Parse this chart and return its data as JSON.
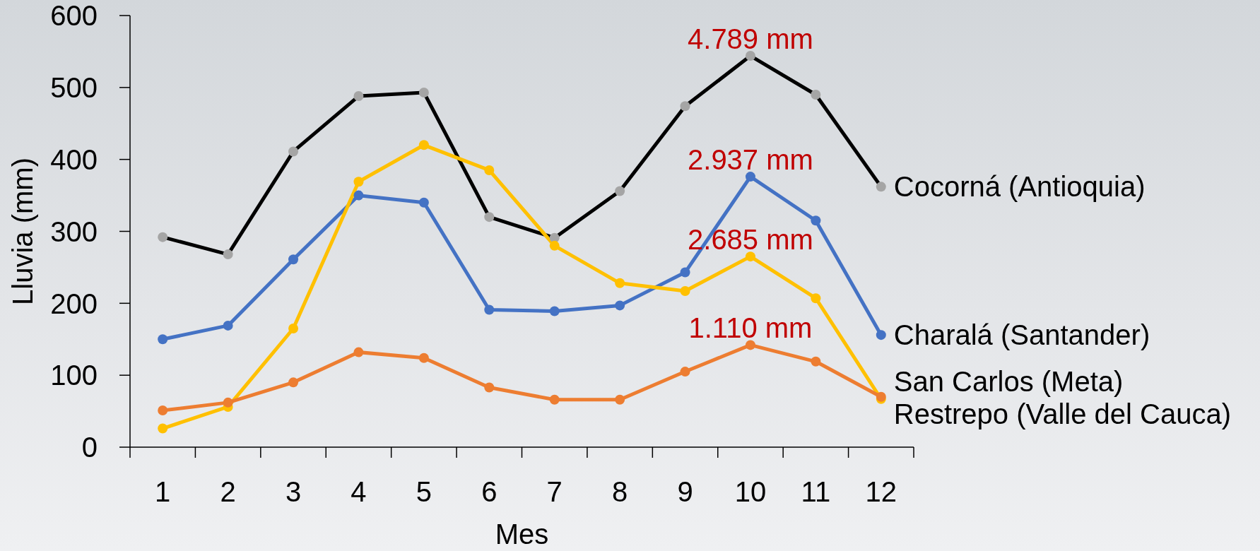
{
  "chart_data": {
    "type": "line",
    "xlabel": "Mes",
    "ylabel": "Lluvia (mm)",
    "categories": [
      "1",
      "2",
      "3",
      "4",
      "5",
      "6",
      "7",
      "8",
      "9",
      "10",
      "11",
      "12"
    ],
    "series": [
      {
        "name": "Cocorná (Antioquia)",
        "color": "#000000",
        "colors": [
          "#a5a5a5",
          "#a5a5a5",
          "#a5a5a5",
          "#a5a5a5",
          "#a5a5a5",
          "#a5a5a5",
          "#a5a5a5",
          "#a5a5a5",
          "#a5a5a5",
          "#a5a5a5",
          "#a5a5a5",
          "#a5a5a5"
        ],
        "values": [
          292,
          268,
          411,
          488,
          493,
          320,
          291,
          356,
          474,
          544,
          490,
          362
        ]
      },
      {
        "name": "Charalá (Santander)",
        "color": "#4472c4",
        "values": [
          150,
          169,
          261,
          350,
          340,
          191,
          189,
          197,
          243,
          376,
          315,
          156
        ]
      },
      {
        "name": "San Carlos (Meta)",
        "color": "#ffc000",
        "values": [
          26,
          56,
          165,
          369,
          420,
          385,
          280,
          228,
          217,
          265,
          207,
          67
        ]
      },
      {
        "name": "Restrepo (Valle del Cauca)",
        "color": "#ed7d31",
        "values": [
          51,
          62,
          90,
          132,
          124,
          83,
          66,
          66,
          105,
          142,
          119,
          70
        ]
      }
    ],
    "ylim": [
      0,
      600
    ],
    "yticks": [
      0,
      100,
      200,
      300,
      400,
      500,
      600
    ],
    "marker": "circle",
    "line_style": "solid",
    "annotations": [
      {
        "text": "4.789 mm",
        "x": "10",
        "y": 544
      },
      {
        "text": "2.937 mm",
        "x": "10",
        "y": 376
      },
      {
        "text": "2.685 mm",
        "x": "10",
        "y": 265
      },
      {
        "text": "1.110 mm",
        "x": "10",
        "y": 142
      }
    ]
  }
}
